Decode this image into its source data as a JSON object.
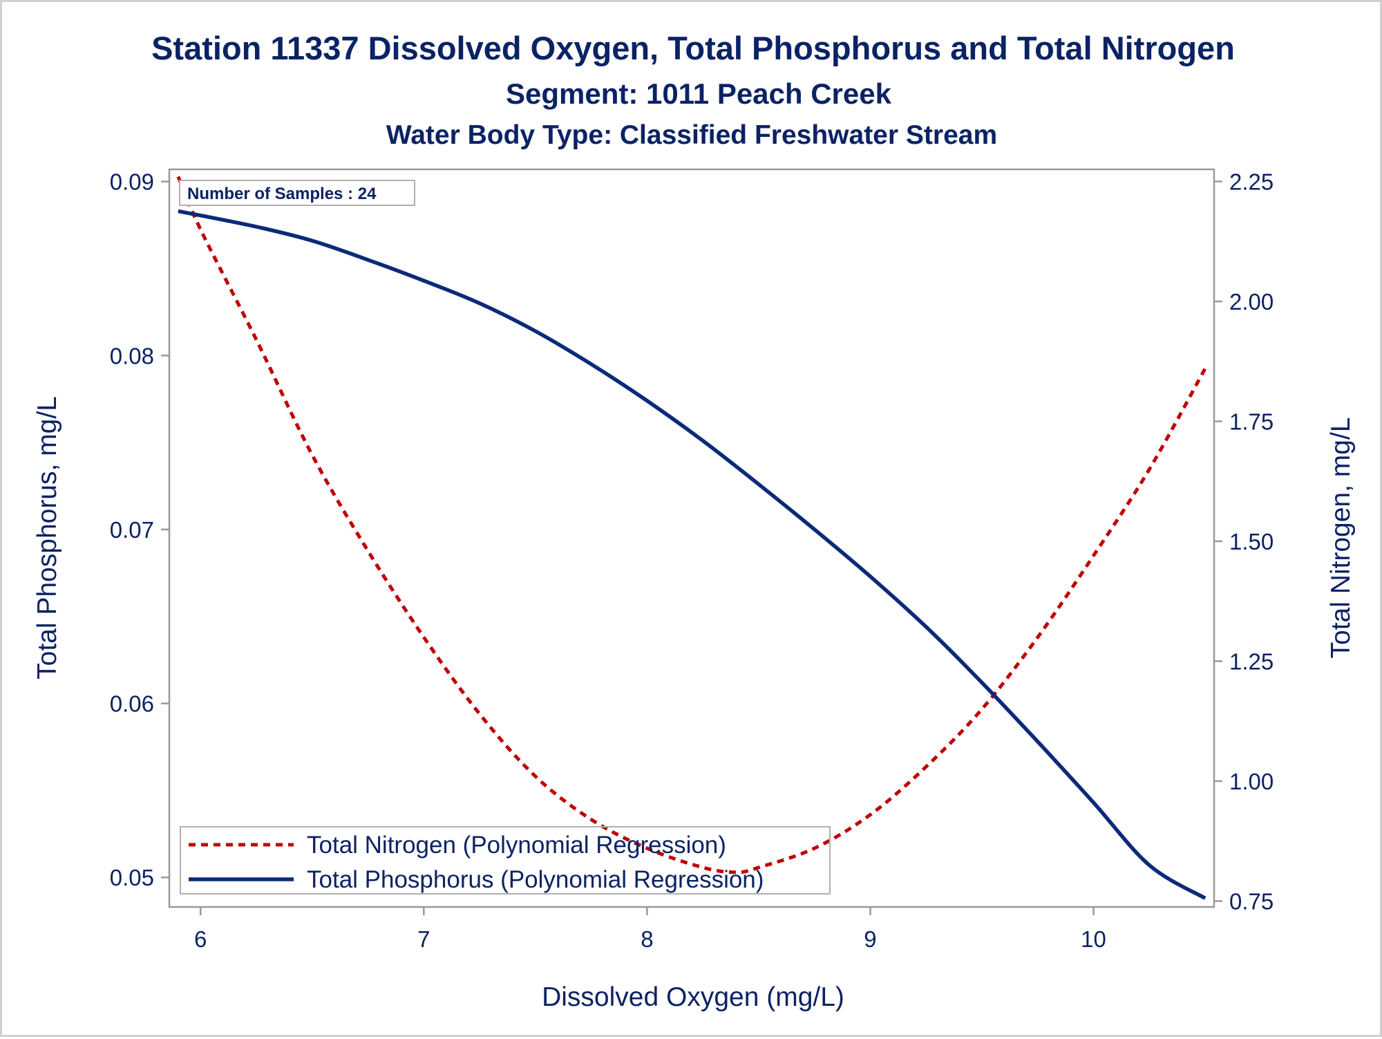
{
  "title": "Station 11337  Dissolved Oxygen, Total Phosphorus and Total Nitrogen",
  "subtitle": "Segment: 1011  Peach Creek",
  "subtitle2": "Water Body Type: Classified Freshwater Stream",
  "inset_label": "Number of Samples : 24",
  "colors": {
    "nitrogen": "#c00000",
    "phosphorus": "#0b2a7a",
    "text": "#0b2265",
    "frame": "#999999"
  },
  "chart_data": {
    "type": "line",
    "title": "Station 11337  Dissolved Oxygen, Total Phosphorus and Total Nitrogen",
    "xlabel": "Dissolved Oxygen (mg/L)",
    "ylabel": "Total Phosphorus, mg/L",
    "y2label": "Total Nitrogen, mg/L",
    "xlim": [
      5.86,
      10.54
    ],
    "ylim": [
      0.0483,
      0.0907
    ],
    "y2lim": [
      0.7377,
      2.2752
    ],
    "x_ticks": [
      "6",
      "7",
      "8",
      "9",
      "10"
    ],
    "y_ticks": [
      "0.05",
      "0.06",
      "0.07",
      "0.08",
      "0.09"
    ],
    "y2_ticks": [
      "0.75",
      "1.00",
      "1.25",
      "1.50",
      "1.75",
      "2.00",
      "2.25"
    ],
    "grid": false,
    "legend_position": "bottom-left",
    "series": [
      {
        "name": "Total Nitrogen (Polynomial Regression)",
        "axis": "right",
        "style": "dashed",
        "x": [
          5.9,
          6.0,
          6.25,
          6.5,
          6.75,
          7.0,
          7.25,
          7.5,
          7.75,
          8.0,
          8.25,
          8.4,
          8.5,
          8.75,
          9.0,
          9.25,
          9.5,
          9.75,
          10.0,
          10.25,
          10.5
        ],
        "values": [
          2.26,
          2.15,
          1.92,
          1.68,
          1.48,
          1.3,
          1.14,
          1.01,
          0.92,
          0.86,
          0.82,
          0.81,
          0.82,
          0.86,
          0.93,
          1.03,
          1.15,
          1.3,
          1.47,
          1.65,
          1.86
        ]
      },
      {
        "name": "Total Phosphorus (Polynomial Regression)",
        "axis": "left",
        "style": "solid",
        "x": [
          5.9,
          6.25,
          6.5,
          6.75,
          7.0,
          7.25,
          7.5,
          7.75,
          8.0,
          8.25,
          8.5,
          8.75,
          9.0,
          9.25,
          9.5,
          9.75,
          10.0,
          10.25,
          10.5
        ],
        "values": [
          0.0883,
          0.0874,
          0.0866,
          0.0855,
          0.0843,
          0.083,
          0.0814,
          0.0795,
          0.0774,
          0.0751,
          0.0726,
          0.07,
          0.0673,
          0.0644,
          0.0612,
          0.0578,
          0.0543,
          0.0507,
          0.0488
        ]
      }
    ]
  }
}
